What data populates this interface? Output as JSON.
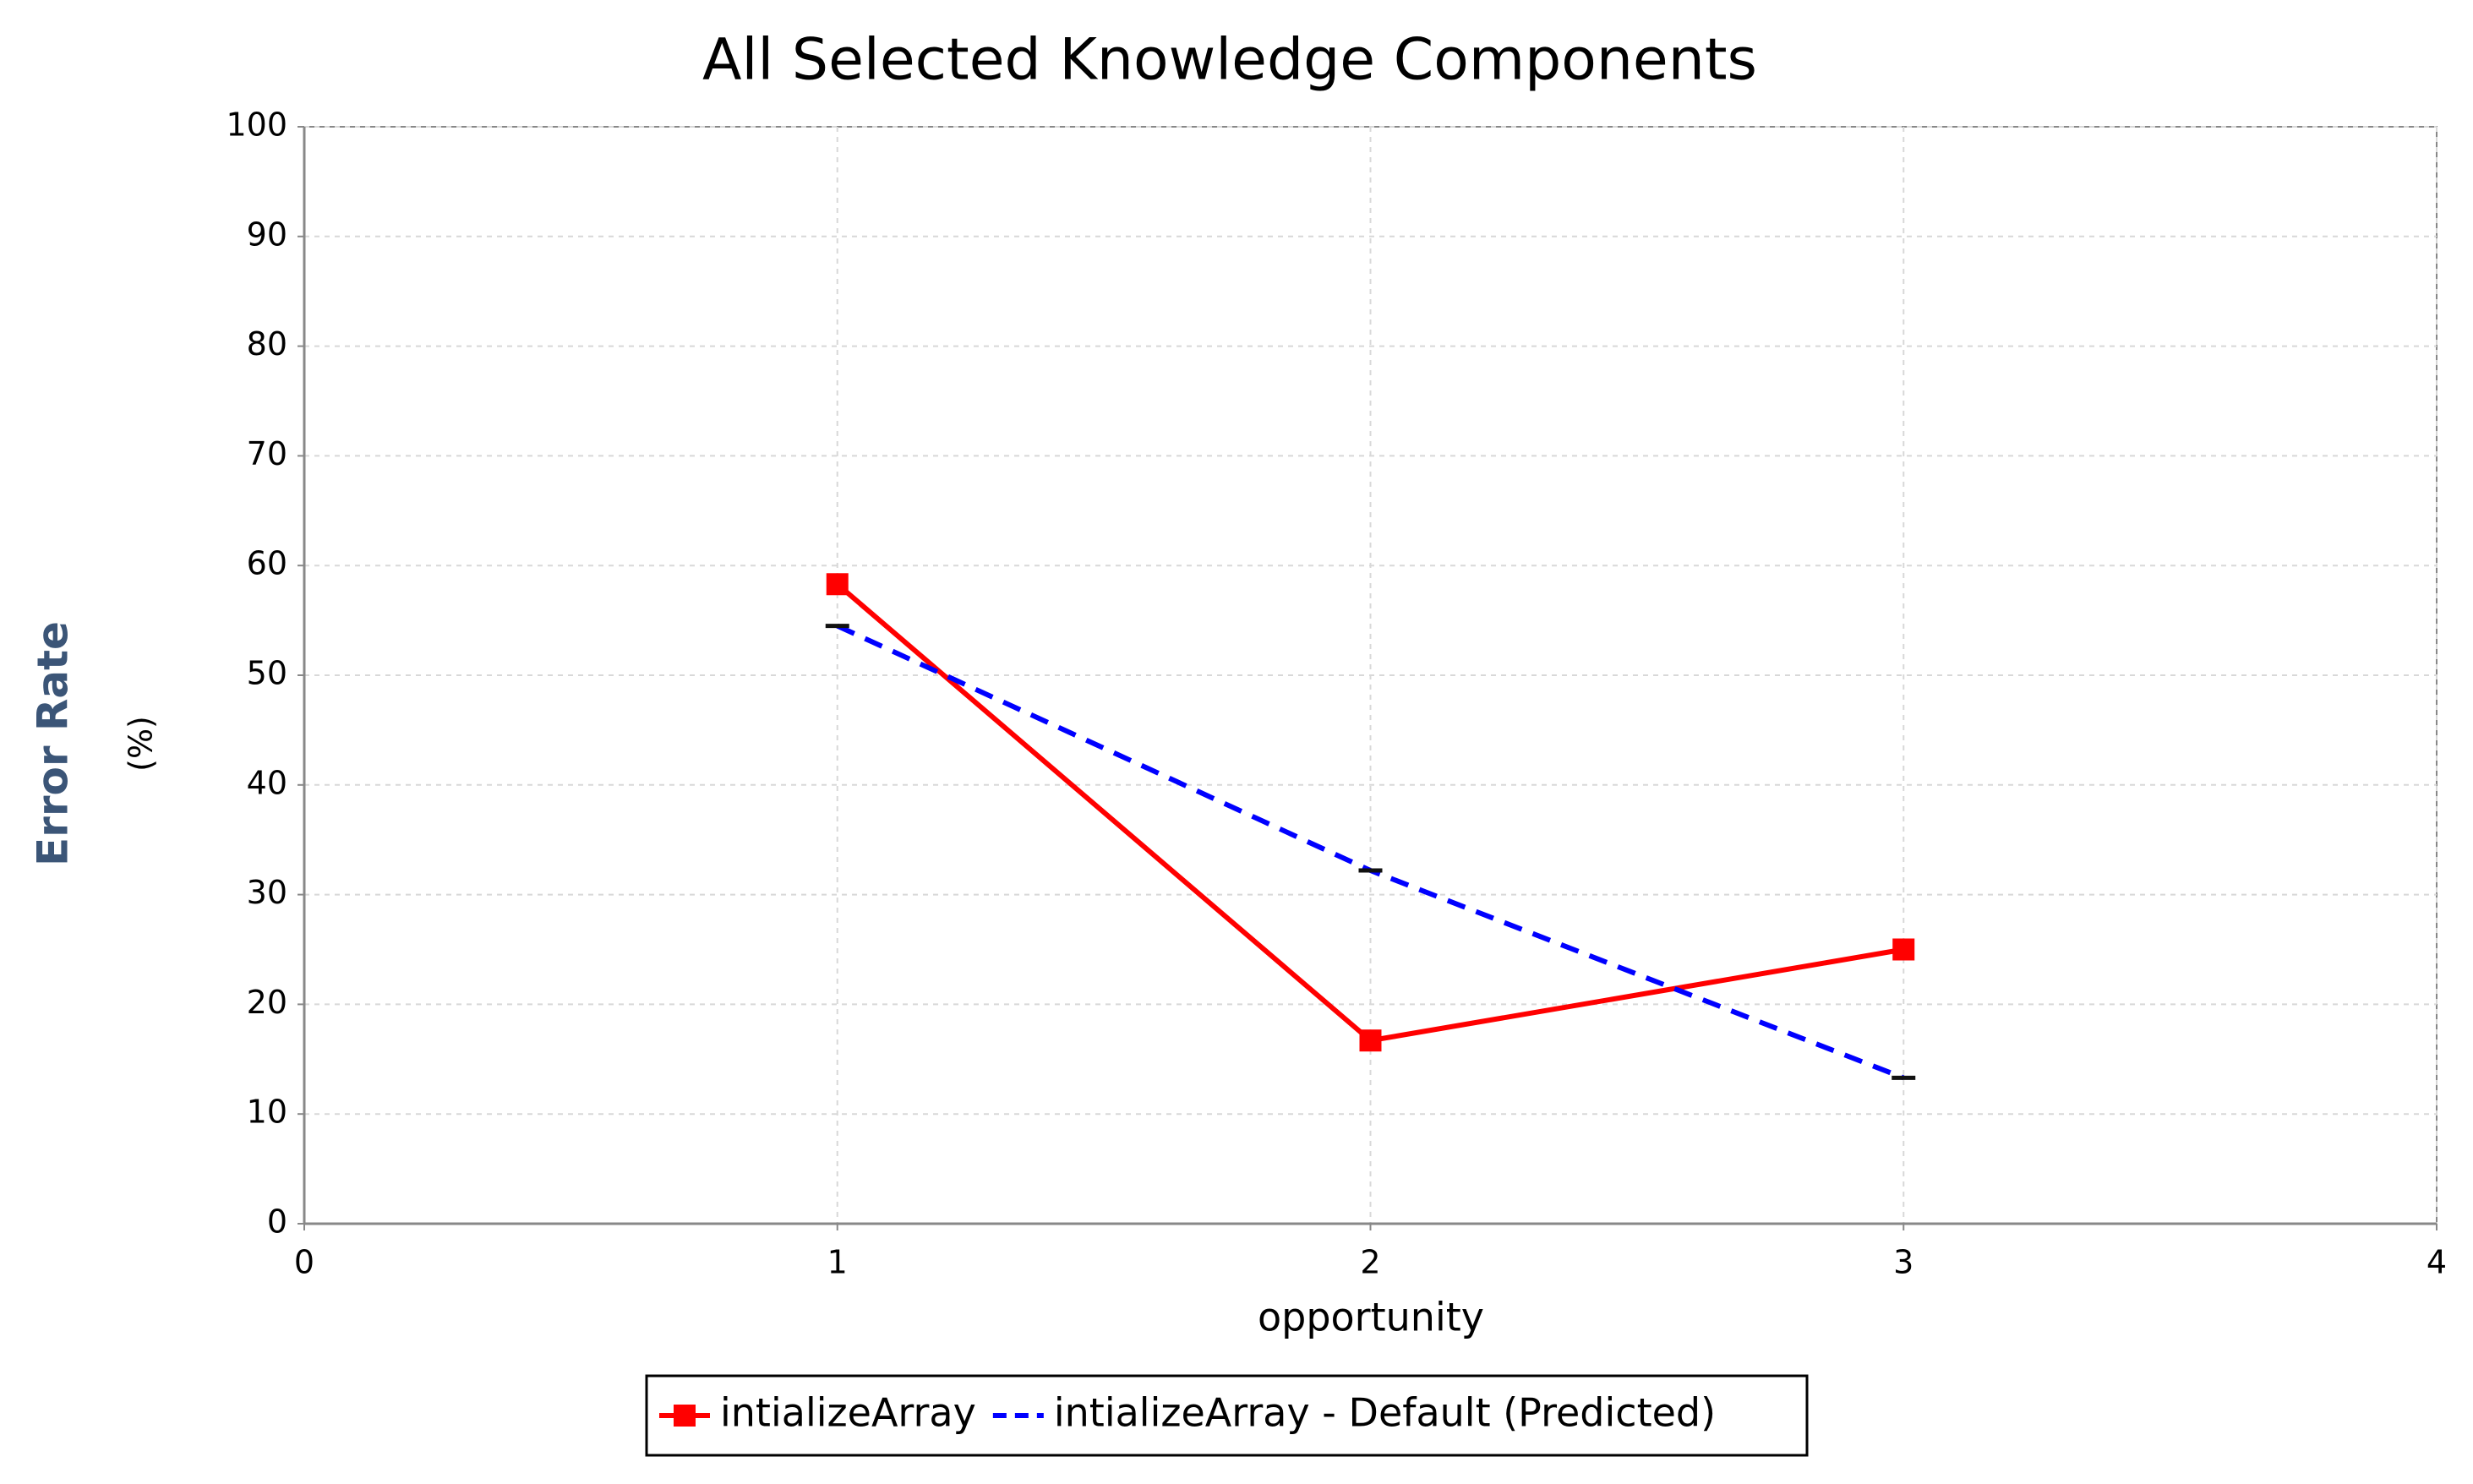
{
  "chart_data": {
    "type": "line",
    "title": "All Selected Knowledge Components",
    "xlabel": "opportunity",
    "ylabel": "Error Rate",
    "ylabel_unit": "(%)",
    "x": [
      1,
      2,
      3
    ],
    "series": [
      {
        "name": "intializeArray",
        "color": "#ff0000",
        "style": "solid",
        "marker": "square",
        "values": [
          58.3,
          16.7,
          25.0
        ]
      },
      {
        "name": "intializeArray - Default (Predicted)",
        "color": "#0000ff",
        "style": "dashed",
        "marker": "none",
        "values": [
          54.5,
          32.2,
          13.3
        ]
      }
    ],
    "xlim": [
      0,
      4
    ],
    "xticks": [
      0,
      1,
      2,
      3,
      4
    ],
    "ylim": [
      0,
      100
    ],
    "yticks": [
      0,
      10,
      20,
      30,
      40,
      50,
      60,
      70,
      80,
      90,
      100
    ],
    "grid": true,
    "legend": "bottom"
  }
}
